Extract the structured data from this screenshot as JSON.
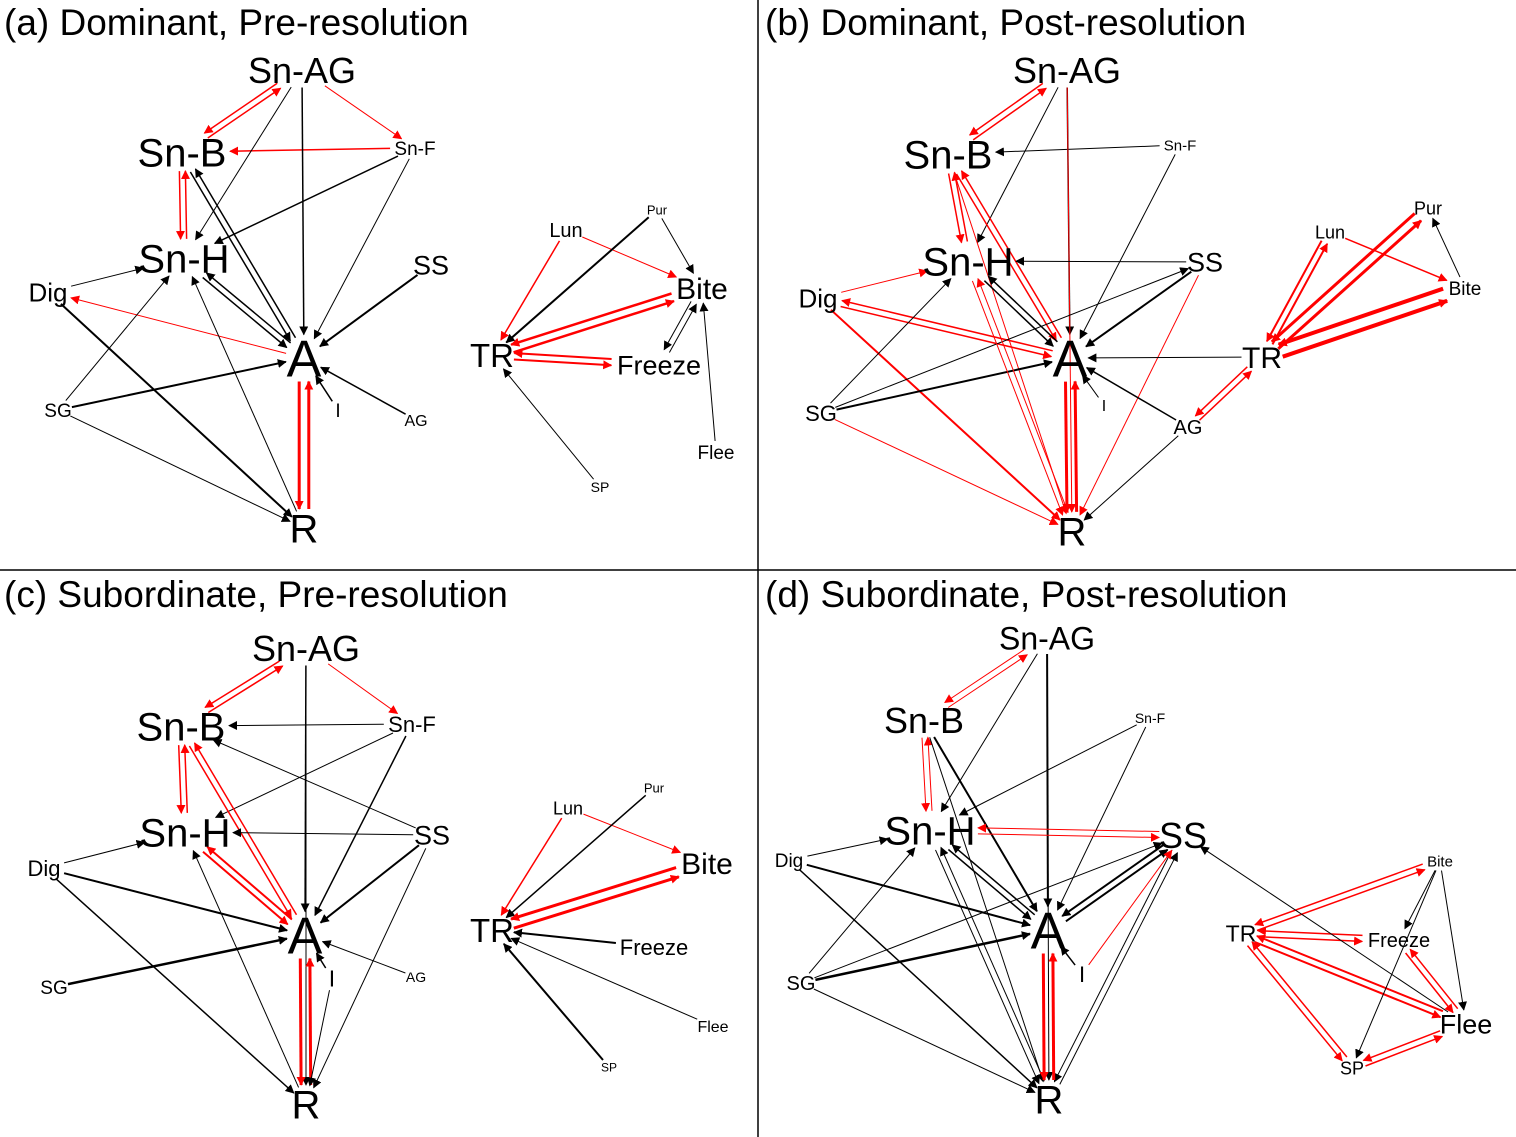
{
  "colors": {
    "red": "#ff0000",
    "black": "#000000"
  },
  "panels": [
    {
      "id": "a",
      "title": "(a) Dominant, Pre-resolution",
      "nodes": {
        "SnAG": {
          "label": "Sn-AG"
        },
        "SnB": {
          "label": "Sn-B"
        },
        "SnF": {
          "label": "Sn-F"
        },
        "SnH": {
          "label": "Sn-H"
        },
        "Dig": {
          "label": "Dig"
        },
        "SS": {
          "label": "SS"
        },
        "A": {
          "label": "A"
        },
        "I": {
          "label": "I"
        },
        "SG": {
          "label": "SG"
        },
        "AG": {
          "label": "AG"
        },
        "R": {
          "label": "R"
        },
        "Lun": {
          "label": "Lun"
        },
        "Pur": {
          "label": "Pur"
        },
        "Bite": {
          "label": "Bite"
        },
        "TR": {
          "label": "TR"
        },
        "Freeze": {
          "label": "Freeze"
        },
        "Flee": {
          "label": "Flee"
        },
        "SP": {
          "label": "SP"
        }
      },
      "edges": [
        {
          "from": "SnB",
          "to": "SnAG",
          "color": "red",
          "weight": 1.5,
          "bidir": true
        },
        {
          "from": "SnAG",
          "to": "SnF",
          "color": "red",
          "weight": 1
        },
        {
          "from": "SnF",
          "to": "SnB",
          "color": "red",
          "weight": 1.5
        },
        {
          "from": "SnB",
          "to": "SnH",
          "color": "red",
          "weight": 1.5,
          "bidir": true
        },
        {
          "from": "SnAG",
          "to": "A",
          "color": "black",
          "weight": 1.5
        },
        {
          "from": "SnAG",
          "to": "SnH",
          "color": "black",
          "weight": 1
        },
        {
          "from": "SnF",
          "to": "SnH",
          "color": "black",
          "weight": 1.5
        },
        {
          "from": "SnF",
          "to": "A",
          "color": "black",
          "weight": 1
        },
        {
          "from": "SnB",
          "to": "A",
          "color": "black",
          "weight": 1.5,
          "bidir": true
        },
        {
          "from": "Dig",
          "to": "SnH",
          "color": "black",
          "weight": 1
        },
        {
          "from": "A",
          "to": "Dig",
          "color": "red",
          "weight": 1
        },
        {
          "from": "A",
          "to": "SnH",
          "color": "black",
          "weight": 1.5,
          "bidir": true
        },
        {
          "from": "SS",
          "to": "A",
          "color": "black",
          "weight": 2
        },
        {
          "from": "Dig",
          "to": "R",
          "color": "black",
          "weight": 2
        },
        {
          "from": "SG",
          "to": "SnH",
          "color": "black",
          "weight": 1
        },
        {
          "from": "SG",
          "to": "A",
          "color": "black",
          "weight": 2
        },
        {
          "from": "SG",
          "to": "R",
          "color": "black",
          "weight": 1
        },
        {
          "from": "R",
          "to": "SnH",
          "color": "black",
          "weight": 1
        },
        {
          "from": "A",
          "to": "R",
          "color": "red",
          "weight": 3,
          "bidir": true
        },
        {
          "from": "I",
          "to": "A",
          "color": "black",
          "weight": 1.5
        },
        {
          "from": "AG",
          "to": "A",
          "color": "black",
          "weight": 1.5
        },
        {
          "from": "Lun",
          "to": "TR",
          "color": "red",
          "weight": 1.5
        },
        {
          "from": "Lun",
          "to": "Bite",
          "color": "red",
          "weight": 1
        },
        {
          "from": "Pur",
          "to": "TR",
          "color": "black",
          "weight": 2
        },
        {
          "from": "Pur",
          "to": "Bite",
          "color": "black",
          "weight": 1
        },
        {
          "from": "Bite",
          "to": "TR",
          "color": "red",
          "weight": 2.5,
          "bidir": true
        },
        {
          "from": "TR",
          "to": "Freeze",
          "color": "red",
          "weight": 2,
          "bidir": true
        },
        {
          "from": "Freeze",
          "to": "Bite",
          "color": "black",
          "weight": 1,
          "bidir": true
        },
        {
          "from": "Flee",
          "to": "Bite",
          "color": "black",
          "weight": 1
        },
        {
          "from": "SP",
          "to": "TR",
          "color": "black",
          "weight": 1
        }
      ]
    },
    {
      "id": "b",
      "title": "(b) Dominant, Post-resolution",
      "nodes": {
        "SnAG": {
          "label": "Sn-AG"
        },
        "SnB": {
          "label": "Sn-B"
        },
        "SnF": {
          "label": "Sn-F"
        },
        "SnH": {
          "label": "Sn-H"
        },
        "Dig": {
          "label": "Dig"
        },
        "SS": {
          "label": "SS"
        },
        "A": {
          "label": "A"
        },
        "I": {
          "label": "I"
        },
        "SG": {
          "label": "SG"
        },
        "AG": {
          "label": "AG"
        },
        "R": {
          "label": "R"
        },
        "Lun": {
          "label": "Lun"
        },
        "Pur": {
          "label": "Pur"
        },
        "Bite": {
          "label": "Bite"
        },
        "TR": {
          "label": "TR"
        }
      },
      "edges": [
        {
          "from": "SnB",
          "to": "SnAG",
          "color": "red",
          "weight": 1.5,
          "bidir": true
        },
        {
          "from": "SnF",
          "to": "SnB",
          "color": "black",
          "weight": 1
        },
        {
          "from": "SnB",
          "to": "SnH",
          "color": "red",
          "weight": 1.5,
          "bidir": true
        },
        {
          "from": "SnAG",
          "to": "SnH",
          "color": "black",
          "weight": 1
        },
        {
          "from": "SnAG",
          "to": "A",
          "color": "black",
          "weight": 1.5
        },
        {
          "from": "SnAG",
          "to": "R",
          "color": "red",
          "weight": 1
        },
        {
          "from": "SnF",
          "to": "A",
          "color": "black",
          "weight": 1
        },
        {
          "from": "SnB",
          "to": "A",
          "color": "red",
          "weight": 1.5,
          "bidir": true
        },
        {
          "from": "SnB",
          "to": "R",
          "color": "red",
          "weight": 1
        },
        {
          "from": "SS",
          "to": "SnH",
          "color": "black",
          "weight": 1
        },
        {
          "from": "SS",
          "to": "A",
          "color": "black",
          "weight": 2
        },
        {
          "from": "SS",
          "to": "R",
          "color": "red",
          "weight": 1
        },
        {
          "from": "A",
          "to": "SnH",
          "color": "black",
          "weight": 1.5,
          "bidir": true
        },
        {
          "from": "Dig",
          "to": "SnH",
          "color": "red",
          "weight": 1
        },
        {
          "from": "A",
          "to": "Dig",
          "color": "red",
          "weight": 1.5,
          "bidir": true
        },
        {
          "from": "Dig",
          "to": "R",
          "color": "red",
          "weight": 2
        },
        {
          "from": "SG",
          "to": "SnH",
          "color": "black",
          "weight": 1
        },
        {
          "from": "SG",
          "to": "SS",
          "color": "black",
          "weight": 1
        },
        {
          "from": "SG",
          "to": "A",
          "color": "black",
          "weight": 2
        },
        {
          "from": "SG",
          "to": "R",
          "color": "red",
          "weight": 1
        },
        {
          "from": "SnH",
          "to": "R",
          "color": "red",
          "weight": 1,
          "bidir": true
        },
        {
          "from": "A",
          "to": "R",
          "color": "red",
          "weight": 3,
          "bidir": true
        },
        {
          "from": "I",
          "to": "A",
          "color": "black",
          "weight": 1
        },
        {
          "from": "AG",
          "to": "A",
          "color": "black",
          "weight": 1.5
        },
        {
          "from": "AG",
          "to": "R",
          "color": "black",
          "weight": 1
        },
        {
          "from": "AG",
          "to": "TR",
          "color": "red",
          "weight": 1.5,
          "bidir": true
        },
        {
          "from": "TR",
          "to": "A",
          "color": "black",
          "weight": 1
        },
        {
          "from": "Lun",
          "to": "TR",
          "color": "red",
          "weight": 2,
          "bidir": true
        },
        {
          "from": "Lun",
          "to": "Bite",
          "color": "red",
          "weight": 1.5
        },
        {
          "from": "Pur",
          "to": "TR",
          "color": "red",
          "weight": 3,
          "bidir": true
        },
        {
          "from": "Bite",
          "to": "Pur",
          "color": "black",
          "weight": 1
        },
        {
          "from": "Bite",
          "to": "TR",
          "color": "red",
          "weight": 4,
          "bidir": true
        }
      ]
    },
    {
      "id": "c",
      "title": "(c) Subordinate, Pre-resolution",
      "nodes": {
        "SnAG": {
          "label": "Sn-AG"
        },
        "SnB": {
          "label": "Sn-B"
        },
        "SnF": {
          "label": "Sn-F"
        },
        "SnH": {
          "label": "Sn-H"
        },
        "Dig": {
          "label": "Dig"
        },
        "SS": {
          "label": "SS"
        },
        "A": {
          "label": "A"
        },
        "I": {
          "label": "I"
        },
        "SG": {
          "label": "SG"
        },
        "AG": {
          "label": "AG"
        },
        "R": {
          "label": "R"
        },
        "Lun": {
          "label": "Lun"
        },
        "Pur": {
          "label": "Pur"
        },
        "Bite": {
          "label": "Bite"
        },
        "TR": {
          "label": "TR"
        },
        "Freeze": {
          "label": "Freeze"
        },
        "Flee": {
          "label": "Flee"
        },
        "SP": {
          "label": "SP"
        }
      },
      "edges": [
        {
          "from": "SnB",
          "to": "SnAG",
          "color": "red",
          "weight": 1.5,
          "bidir": true
        },
        {
          "from": "SnAG",
          "to": "SnF",
          "color": "red",
          "weight": 1
        },
        {
          "from": "SnF",
          "to": "SnB",
          "color": "black",
          "weight": 1
        },
        {
          "from": "SnB",
          "to": "SnH",
          "color": "red",
          "weight": 1.5,
          "bidir": true
        },
        {
          "from": "SnAG",
          "to": "A",
          "color": "black",
          "weight": 1.5
        },
        {
          "from": "SnAG",
          "to": "R",
          "color": "black",
          "weight": 1
        },
        {
          "from": "SnF",
          "to": "SnH",
          "color": "black",
          "weight": 1
        },
        {
          "from": "SnF",
          "to": "A",
          "color": "black",
          "weight": 1.5
        },
        {
          "from": "SnB",
          "to": "A",
          "color": "red",
          "weight": 1.5,
          "bidir": true
        },
        {
          "from": "SS",
          "to": "SnB",
          "color": "black",
          "weight": 1
        },
        {
          "from": "SS",
          "to": "SnH",
          "color": "black",
          "weight": 1
        },
        {
          "from": "SS",
          "to": "A",
          "color": "black",
          "weight": 2
        },
        {
          "from": "SS",
          "to": "R",
          "color": "black",
          "weight": 1
        },
        {
          "from": "Dig",
          "to": "SnH",
          "color": "black",
          "weight": 1
        },
        {
          "from": "A",
          "to": "SnH",
          "color": "red",
          "weight": 2,
          "bidir": true
        },
        {
          "from": "Dig",
          "to": "A",
          "color": "black",
          "weight": 2
        },
        {
          "from": "Dig",
          "to": "R",
          "color": "black",
          "weight": 1.5
        },
        {
          "from": "SG",
          "to": "A",
          "color": "black",
          "weight": 2.5
        },
        {
          "from": "R",
          "to": "SnH",
          "color": "black",
          "weight": 1
        },
        {
          "from": "A",
          "to": "R",
          "color": "red",
          "weight": 3,
          "bidir": true
        },
        {
          "from": "I",
          "to": "A",
          "color": "black",
          "weight": 1.5
        },
        {
          "from": "I",
          "to": "R",
          "color": "black",
          "weight": 1
        },
        {
          "from": "AG",
          "to": "A",
          "color": "black",
          "weight": 1
        },
        {
          "from": "Lun",
          "to": "TR",
          "color": "red",
          "weight": 1.5
        },
        {
          "from": "Lun",
          "to": "Bite",
          "color": "red",
          "weight": 1
        },
        {
          "from": "Pur",
          "to": "TR",
          "color": "black",
          "weight": 1.5
        },
        {
          "from": "Bite",
          "to": "TR",
          "color": "red",
          "weight": 3,
          "bidir": true
        },
        {
          "from": "Freeze",
          "to": "TR",
          "color": "black",
          "weight": 2
        },
        {
          "from": "Flee",
          "to": "TR",
          "color": "black",
          "weight": 1
        },
        {
          "from": "SP",
          "to": "TR",
          "color": "black",
          "weight": 2
        }
      ]
    },
    {
      "id": "d",
      "title": "(d) Subordinate, Post-resolution",
      "nodes": {
        "SnAG": {
          "label": "Sn-AG"
        },
        "SnB": {
          "label": "Sn-B"
        },
        "SnF": {
          "label": "Sn-F"
        },
        "SnH": {
          "label": "Sn-H"
        },
        "Dig": {
          "label": "Dig"
        },
        "SS": {
          "label": "SS"
        },
        "A": {
          "label": "A"
        },
        "I": {
          "label": "I"
        },
        "SG": {
          "label": "SG"
        },
        "R": {
          "label": "R"
        },
        "Bite": {
          "label": "Bite"
        },
        "TR": {
          "label": "TR"
        },
        "Freeze": {
          "label": "Freeze"
        },
        "Flee": {
          "label": "Flee"
        },
        "SP": {
          "label": "SP"
        }
      },
      "edges": [
        {
          "from": "SnB",
          "to": "SnAG",
          "color": "red",
          "weight": 1,
          "bidir": true
        },
        {
          "from": "SnB",
          "to": "SnH",
          "color": "red",
          "weight": 1,
          "bidir": true
        },
        {
          "from": "SnAG",
          "to": "SnH",
          "color": "black",
          "weight": 1
        },
        {
          "from": "SnAG",
          "to": "A",
          "color": "black",
          "weight": 2
        },
        {
          "from": "SnAG",
          "to": "R",
          "color": "black",
          "weight": 1
        },
        {
          "from": "SnF",
          "to": "SnH",
          "color": "black",
          "weight": 1
        },
        {
          "from": "SnF",
          "to": "A",
          "color": "black",
          "weight": 1
        },
        {
          "from": "SnB",
          "to": "A",
          "color": "black",
          "weight": 2
        },
        {
          "from": "SnB",
          "to": "R",
          "color": "black",
          "weight": 1
        },
        {
          "from": "SnH",
          "to": "SS",
          "color": "red",
          "weight": 1,
          "bidir": true
        },
        {
          "from": "A",
          "to": "SnH",
          "color": "black",
          "weight": 1.5,
          "bidir": true
        },
        {
          "from": "SS",
          "to": "A",
          "color": "black",
          "weight": 2,
          "bidir": true
        },
        {
          "from": "SS",
          "to": "R",
          "color": "black",
          "weight": 1,
          "bidir": true
        },
        {
          "from": "I",
          "to": "SS",
          "color": "red",
          "weight": 1
        },
        {
          "from": "Dig",
          "to": "SnH",
          "color": "black",
          "weight": 1
        },
        {
          "from": "Dig",
          "to": "A",
          "color": "black",
          "weight": 2
        },
        {
          "from": "Dig",
          "to": "R",
          "color": "black",
          "weight": 1.5
        },
        {
          "from": "SG",
          "to": "SnH",
          "color": "black",
          "weight": 1
        },
        {
          "from": "SG",
          "to": "SS",
          "color": "black",
          "weight": 1
        },
        {
          "from": "SG",
          "to": "A",
          "color": "black",
          "weight": 2.5
        },
        {
          "from": "SG",
          "to": "R",
          "color": "black",
          "weight": 1
        },
        {
          "from": "SnH",
          "to": "R",
          "color": "black",
          "weight": 1,
          "bidir": true
        },
        {
          "from": "A",
          "to": "R",
          "color": "red",
          "weight": 3,
          "bidir": true
        },
        {
          "from": "I",
          "to": "A",
          "color": "black",
          "weight": 1.5
        },
        {
          "from": "Bite",
          "to": "TR",
          "color": "red",
          "weight": 1.5,
          "bidir": true
        },
        {
          "from": "TR",
          "to": "Freeze",
          "color": "red",
          "weight": 1.5,
          "bidir": true
        },
        {
          "from": "TR",
          "to": "Flee",
          "color": "red",
          "weight": 2,
          "bidir": true
        },
        {
          "from": "TR",
          "to": "SP",
          "color": "red",
          "weight": 1.5,
          "bidir": true
        },
        {
          "from": "Flee",
          "to": "SP",
          "color": "red",
          "weight": 1.5,
          "bidir": true
        },
        {
          "from": "Freeze",
          "to": "Flee",
          "color": "red",
          "weight": 1.5,
          "bidir": true
        },
        {
          "from": "Bite",
          "to": "Freeze",
          "color": "black",
          "weight": 1
        },
        {
          "from": "Bite",
          "to": "Flee",
          "color": "black",
          "weight": 1
        },
        {
          "from": "Bite",
          "to": "SP",
          "color": "black",
          "weight": 1
        },
        {
          "from": "Flee",
          "to": "SS",
          "color": "black",
          "weight": 1
        }
      ]
    }
  ]
}
